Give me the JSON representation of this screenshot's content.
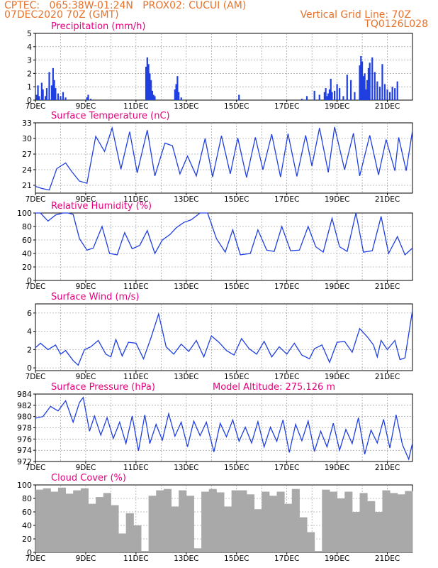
{
  "header": {
    "line1_left": "CPTEC:   065:38W-01:24N   PROX02: CUCUI (AM)",
    "line2_left": "07DEC2020 70Z (GMT)",
    "line2_right": "Vertical Grid Line: 70Z",
    "line3_right": "TQ0126L028"
  },
  "colors": {
    "header": "#e8722a",
    "panel_title": "#e6007e",
    "series": "#1f3fe0",
    "cloud": "#a9a9a9",
    "grid": "#888888"
  },
  "x_ticks": [
    "7DEC",
    "9DEC",
    "11DEC",
    "13DEC",
    "15DEC",
    "17DEC",
    "19DEC",
    "21DEC"
  ],
  "chart_data": [
    {
      "type": "bar",
      "title": "Precipitation (mm/h)",
      "ylim": [
        0,
        5
      ],
      "yticks": [
        "0",
        "1",
        "2",
        "3",
        "4",
        "5"
      ],
      "x_unit": "day offset from 7DEC",
      "x": [
        0.05,
        0.1,
        0.15,
        0.25,
        0.3,
        0.4,
        0.45,
        0.55,
        0.65,
        0.7,
        0.75,
        0.8,
        0.9,
        1.0,
        1.1,
        1.2,
        2.05,
        2.1,
        2.2,
        4.4,
        4.45,
        4.5,
        4.55,
        4.6,
        4.65,
        4.7,
        4.75,
        5.55,
        5.6,
        5.65,
        5.7,
        5.8,
        8.1,
        10.6,
        10.8,
        11.1,
        11.3,
        11.5,
        11.55,
        11.6,
        11.65,
        11.7,
        11.75,
        11.8,
        11.9,
        12.0,
        12.1,
        12.25,
        12.4,
        12.55,
        12.7,
        12.9,
        12.95,
        13.0,
        13.05,
        13.1,
        13.15,
        13.2,
        13.25,
        13.3,
        13.4,
        13.5,
        13.6,
        13.7,
        13.8,
        13.9,
        14.0,
        14.1,
        14.2,
        14.3,
        14.4
      ],
      "values": [
        0.4,
        1.1,
        0.3,
        1.3,
        0.8,
        0.3,
        0.9,
        2.1,
        1.1,
        2.4,
        1.5,
        0.9,
        0.5,
        0.3,
        0.6,
        0.2,
        0.2,
        0.4,
        0.1,
        2.5,
        3.2,
        2.7,
        2.0,
        1.5,
        0.7,
        0.4,
        0.3,
        0.8,
        1.2,
        1.8,
        0.6,
        0.2,
        0.4,
        0.1,
        0.3,
        0.7,
        0.4,
        0.6,
        0.9,
        0.3,
        0.5,
        0.8,
        1.6,
        0.6,
        0.7,
        1.2,
        0.9,
        0.3,
        1.9,
        1.5,
        0.6,
        2.6,
        3.3,
        2.9,
        1.8,
        2.0,
        0.8,
        1.5,
        2.4,
        2.8,
        3.2,
        2.1,
        1.4,
        1.0,
        2.7,
        1.2,
        0.8,
        0.6,
        1.0,
        0.9,
        1.4
      ]
    },
    {
      "type": "line",
      "title": "Surface Temperature (nC)",
      "ylim": [
        19.5,
        33
      ],
      "yticks": [
        "21",
        "24",
        "27",
        "30",
        "33"
      ],
      "x_unit": "day offset from 7DEC",
      "x": [
        0.0,
        0.25,
        0.55,
        0.85,
        1.2,
        1.45,
        1.75,
        2.05,
        2.4,
        2.75,
        3.05,
        3.4,
        3.75,
        4.05,
        4.45,
        4.75,
        5.15,
        5.45,
        5.75,
        6.05,
        6.4,
        6.75,
        7.05,
        7.4,
        7.75,
        8.05,
        8.4,
        8.75,
        9.05,
        9.4,
        9.75,
        10.05,
        10.4,
        10.75,
        11.0,
        11.3,
        11.65,
        11.9,
        12.3,
        12.65,
        12.9,
        13.3,
        13.65,
        13.95,
        14.3,
        14.45,
        14.55,
        14.75,
        15.0
      ],
      "values": [
        20.8,
        20.4,
        20.1,
        24.2,
        25.3,
        23.6,
        21.8,
        21.4,
        30.4,
        27.5,
        32.0,
        24.1,
        31.3,
        23.4,
        31.6,
        22.8,
        29.1,
        28.6,
        23.2,
        26.6,
        22.8,
        30.0,
        22.6,
        30.5,
        23.2,
        30.1,
        22.5,
        30.2,
        24.0,
        30.8,
        22.6,
        30.9,
        22.7,
        30.6,
        24.7,
        32.0,
        23.5,
        32.2,
        24.0,
        31.0,
        22.8,
        30.6,
        23.0,
        29.8,
        23.8,
        30.2,
        28.1,
        23.8,
        31.5
      ]
    },
    {
      "type": "line",
      "title": "Relative Humidity (%)",
      "ylim": [
        0,
        100
      ],
      "yticks": [
        "0",
        "20",
        "40",
        "60",
        "80",
        "100"
      ],
      "x_unit": "day offset from 7DEC",
      "x": [
        0.0,
        0.2,
        0.5,
        0.8,
        1.1,
        1.3,
        1.5,
        1.75,
        2.05,
        2.3,
        2.65,
        2.95,
        3.25,
        3.55,
        3.85,
        4.15,
        4.45,
        4.75,
        5.05,
        5.35,
        5.6,
        5.9,
        6.2,
        6.55,
        6.85,
        7.2,
        7.55,
        7.85,
        8.15,
        8.55,
        8.85,
        9.2,
        9.5,
        9.8,
        10.15,
        10.5,
        10.85,
        11.15,
        11.45,
        11.8,
        12.1,
        12.4,
        12.75,
        13.05,
        13.4,
        13.75,
        14.05,
        14.4,
        14.7,
        15.0
      ],
      "values": [
        100,
        100,
        88,
        97,
        100,
        100,
        98,
        62,
        45,
        48,
        80,
        40,
        38,
        71,
        47,
        52,
        74,
        40,
        60,
        68,
        78,
        86,
        90,
        100,
        100,
        62,
        42,
        75,
        38,
        40,
        75,
        45,
        43,
        80,
        44,
        45,
        80,
        50,
        42,
        92,
        50,
        43,
        100,
        42,
        44,
        95,
        40,
        65,
        38,
        48
      ]
    },
    {
      "type": "line",
      "title": "Surface Wind (m/s)",
      "ylim": [
        -0.3,
        7
      ],
      "yticks": [
        "0",
        "2",
        "4",
        "6"
      ],
      "x_unit": "day offset from 7DEC",
      "x": [
        0.0,
        0.2,
        0.5,
        0.8,
        1.0,
        1.2,
        1.5,
        1.7,
        1.95,
        2.2,
        2.5,
        2.8,
        3.0,
        3.2,
        3.45,
        3.7,
        4.0,
        4.3,
        4.6,
        4.9,
        5.2,
        5.5,
        5.8,
        6.1,
        6.4,
        6.7,
        7.0,
        7.3,
        7.6,
        7.9,
        8.2,
        8.5,
        8.8,
        9.1,
        9.4,
        9.7,
        10.0,
        10.3,
        10.6,
        10.9,
        11.1,
        11.4,
        11.7,
        12.0,
        12.3,
        12.6,
        12.9,
        13.2,
        13.45,
        13.6,
        13.75,
        14.0,
        14.3,
        14.5,
        14.7,
        15.0
      ],
      "values": [
        2.2,
        2.7,
        2.0,
        2.5,
        1.5,
        1.9,
        0.8,
        0.3,
        2.0,
        2.3,
        3.0,
        1.5,
        1.2,
        3.1,
        1.3,
        2.8,
        2.7,
        1.0,
        3.3,
        5.9,
        2.3,
        1.5,
        2.6,
        1.8,
        3.0,
        1.2,
        3.5,
        2.8,
        1.9,
        1.4,
        3.2,
        2.1,
        1.5,
        2.9,
        1.2,
        2.3,
        1.5,
        2.7,
        1.4,
        1.0,
        2.1,
        2.5,
        0.6,
        2.8,
        2.9,
        1.7,
        4.3,
        3.4,
        2.5,
        1.2,
        3.0,
        2.0,
        3.0,
        0.9,
        1.1,
        6.3
      ]
    },
    {
      "type": "line",
      "title": "Surface Pressure (hPa)",
      "annotation": "Model Altitude: 275.126 m",
      "ylim": [
        972,
        984
      ],
      "yticks": [
        "972",
        "974",
        "976",
        "978",
        "980",
        "982",
        "984"
      ],
      "x_unit": "day offset from 7DEC",
      "x": [
        0.0,
        0.3,
        0.6,
        0.9,
        1.2,
        1.5,
        1.75,
        1.9,
        2.15,
        2.35,
        2.6,
        2.85,
        3.1,
        3.35,
        3.6,
        3.85,
        4.1,
        4.35,
        4.55,
        4.8,
        5.05,
        5.3,
        5.55,
        5.8,
        6.05,
        6.3,
        6.55,
        6.8,
        7.1,
        7.35,
        7.6,
        7.85,
        8.1,
        8.35,
        8.6,
        8.85,
        9.1,
        9.35,
        9.6,
        9.85,
        10.1,
        10.35,
        10.6,
        10.85,
        11.1,
        11.35,
        11.6,
        11.85,
        12.1,
        12.35,
        12.6,
        12.85,
        13.1,
        13.35,
        13.6,
        13.85,
        14.1,
        14.35,
        14.6,
        14.85,
        15.0
      ],
      "values": [
        979.7,
        980.0,
        981.8,
        981.0,
        982.8,
        979.0,
        982.5,
        983.4,
        977.4,
        980.1,
        976.7,
        979.8,
        976.1,
        979.0,
        975.2,
        980.1,
        973.9,
        980.3,
        975.2,
        978.6,
        975.8,
        980.5,
        976.5,
        979.0,
        974.6,
        979.2,
        976.6,
        979.0,
        973.7,
        978.8,
        976.4,
        979.4,
        975.6,
        978.1,
        975.3,
        979.1,
        974.6,
        978.1,
        975.6,
        979.4,
        973.6,
        978.6,
        975.7,
        979.2,
        973.8,
        977.4,
        974.6,
        978.8,
        974.0,
        977.7,
        975.2,
        979.8,
        973.3,
        977.6,
        975.3,
        979.5,
        974.4,
        980.3,
        975.0,
        972.4,
        975.3
      ]
    },
    {
      "type": "bar",
      "title": "Cloud Cover (%)",
      "ylim": [
        0,
        100
      ],
      "yticks": [
        "0",
        "20",
        "40",
        "60",
        "80",
        "100"
      ],
      "x_unit": "day offset from 7DEC",
      "x": [
        0.0,
        0.3,
        0.6,
        0.9,
        1.2,
        1.5,
        1.8,
        2.1,
        2.4,
        2.7,
        3.0,
        3.3,
        3.6,
        3.9,
        4.2,
        4.5,
        4.8,
        5.1,
        5.4,
        5.7,
        6.0,
        6.3,
        6.6,
        6.9,
        7.2,
        7.5,
        7.8,
        8.1,
        8.4,
        8.7,
        9.0,
        9.3,
        9.6,
        9.9,
        10.2,
        10.5,
        10.8,
        11.1,
        11.4,
        11.7,
        12.0,
        12.3,
        12.6,
        12.9,
        13.2,
        13.5,
        13.8,
        14.1,
        14.4,
        14.7
      ],
      "values": [
        93,
        95,
        90,
        96,
        87,
        92,
        95,
        72,
        82,
        88,
        70,
        28,
        58,
        40,
        2,
        84,
        92,
        94,
        68,
        92,
        84,
        6,
        90,
        94,
        89,
        68,
        92,
        92,
        86,
        64,
        90,
        84,
        90,
        72,
        94,
        52,
        30,
        2,
        93,
        90,
        80,
        90,
        60,
        88,
        76,
        60,
        92,
        88,
        86,
        91
      ]
    }
  ]
}
